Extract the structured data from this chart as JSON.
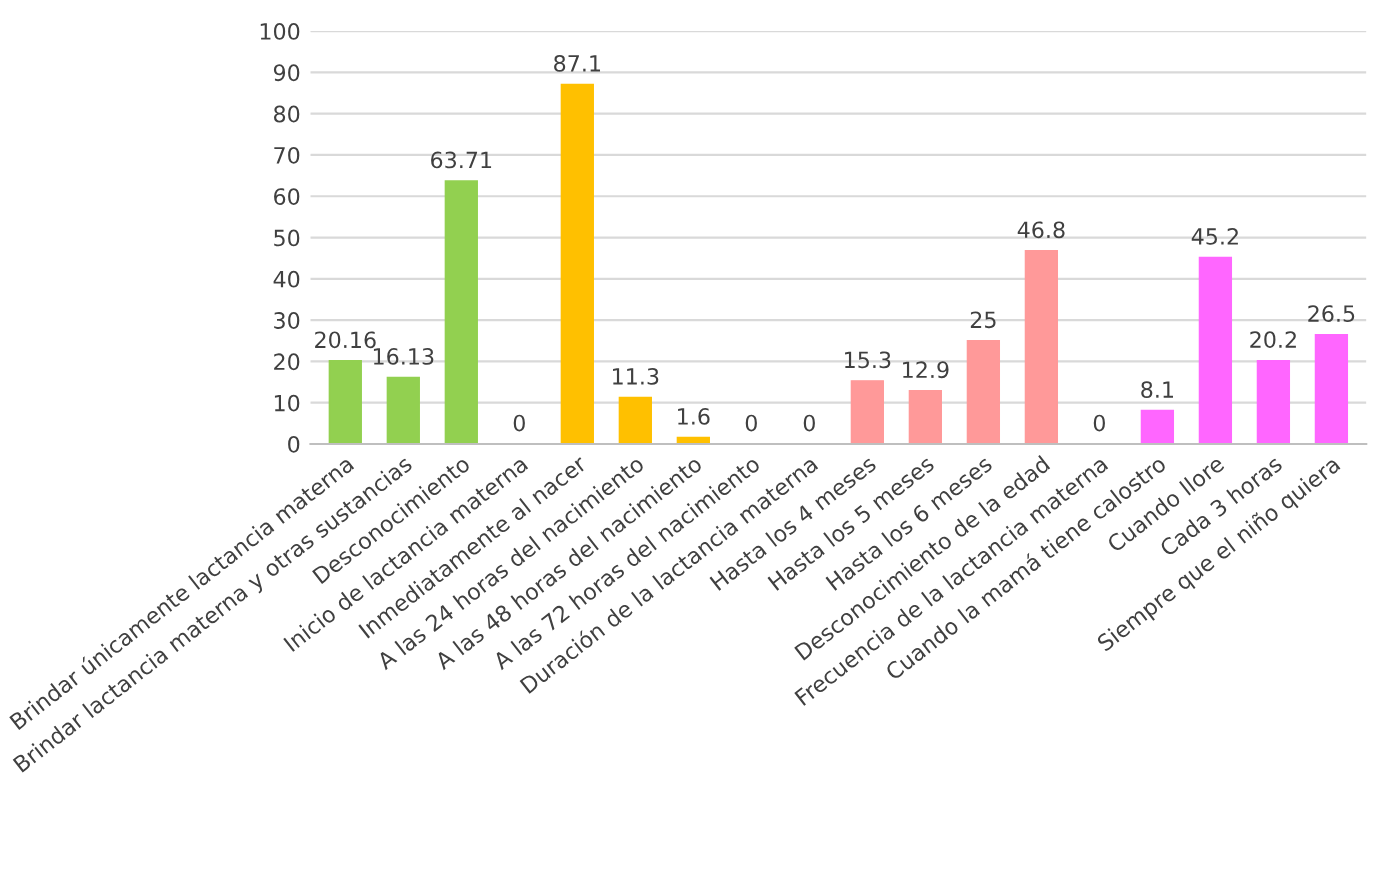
{
  "chart_data": {
    "type": "bar",
    "categories": [
      "Brindar únicamente lactancia materna",
      "Brindar lactancia materna y otras sustancias",
      "Desconocimiento",
      "Inicio de lactancia materna",
      "Inmediatamente al nacer",
      "A las 24 horas del nacimiento",
      "A las 48 horas del nacimiento",
      "A las 72 horas del nacimiento",
      "Duración de la lactancia materna",
      "Hasta los 4 meses",
      "Hasta los 5 meses",
      "Hasta los 6 meses",
      "Desconocimiento de la edad",
      "Frecuencia de la lactancia materna",
      "Cuando la mamá tiene calostro",
      "Cuando llore",
      "Cada 3 horas",
      "Siempre que el niño quiera"
    ],
    "values": [
      20.16,
      16.13,
      63.71,
      0,
      87.1,
      11.3,
      1.6,
      0,
      0,
      15.3,
      12.9,
      25,
      46.8,
      0,
      8.1,
      45.2,
      20.2,
      26.5
    ],
    "colors": [
      "#92d050",
      "#92d050",
      "#92d050",
      "#92d050",
      "#ffc000",
      "#ffc000",
      "#ffc000",
      "#ffc000",
      "#ff9999",
      "#ff9999",
      "#ff9999",
      "#ff9999",
      "#ff9999",
      "#ff66ff",
      "#ff66ff",
      "#ff66ff",
      "#ff66ff",
      "#ff66ff"
    ],
    "ylim": [
      0,
      100
    ],
    "yticks": [
      0,
      10,
      20,
      30,
      40,
      50,
      60,
      70,
      80,
      90,
      100
    ],
    "grid": "y",
    "data_labels": true
  }
}
